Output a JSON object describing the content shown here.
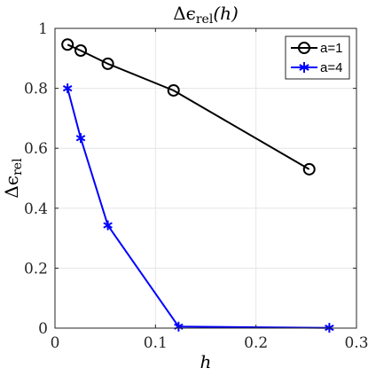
{
  "chart_data": {
    "type": "line",
    "title": "Δϵrel(h)",
    "title_parts": {
      "symbol": "Δϵ",
      "subscript": "rel",
      "rest": "(h)"
    },
    "xlabel": "h",
    "ylabel_parts": {
      "symbol": "Δϵ",
      "subscript": "rel"
    },
    "xlim": [
      0,
      0.3
    ],
    "ylim": [
      0,
      1
    ],
    "xticks": [
      0,
      0.1,
      0.2,
      0.3
    ],
    "xtick_labels": [
      "0",
      "0.1",
      "0.2",
      "0.3"
    ],
    "yticks": [
      0,
      0.2,
      0.4,
      0.6,
      0.8,
      1
    ],
    "ytick_labels": [
      "0",
      "0.2",
      "0.4",
      "0.6",
      "0.8",
      "1"
    ],
    "grid": true,
    "legend_position": "top-right",
    "series": [
      {
        "name": "a=1",
        "color": "#000000",
        "marker": "circle",
        "x": [
          0.0125,
          0.0256,
          0.0526,
          0.118,
          0.253
        ],
        "y": [
          0.946,
          0.926,
          0.882,
          0.793,
          0.53
        ]
      },
      {
        "name": "a=4",
        "color": "#0000ff",
        "marker": "asterisk",
        "x": [
          0.0125,
          0.0256,
          0.0526,
          0.123,
          0.273
        ],
        "y": [
          0.8,
          0.634,
          0.343,
          0.005,
          0.001
        ]
      }
    ]
  }
}
